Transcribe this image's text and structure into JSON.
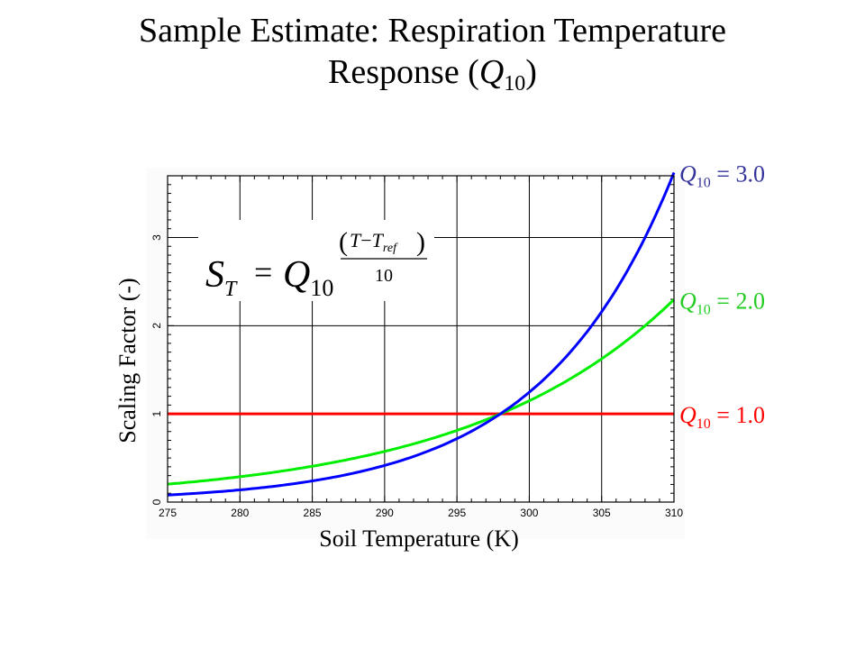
{
  "title": {
    "line1": "Sample Estimate: Respiration Temperature",
    "line2_prefix": "Response (",
    "line2_q": "Q",
    "line2_sub": "10",
    "line2_suffix": ")"
  },
  "formula": {
    "lhs": "S",
    "lhs_sub": "T",
    "eq": "=",
    "base": "Q",
    "base_sub": "10",
    "exp_num_t": "T",
    "exp_num_minus": "−",
    "exp_num_tref": "T",
    "exp_num_tref_sub": "ref",
    "exp_den": "10"
  },
  "chart_data": {
    "type": "line",
    "xlabel": "Soil Temperature (K)",
    "ylabel": "Scaling Factor (-)",
    "xlim": [
      275,
      310
    ],
    "ylim": [
      0,
      3.7
    ],
    "x_ticks": [
      275,
      280,
      285,
      290,
      295,
      300,
      305,
      310
    ],
    "y_ticks": [
      0,
      1,
      2,
      3
    ],
    "grid": true,
    "x": [
      275,
      277.5,
      280,
      282.5,
      285,
      287.5,
      290,
      292.5,
      295,
      297.5,
      298,
      300,
      302.5,
      305,
      307.5,
      310
    ],
    "series": [
      {
        "name": "Q10 = 1.0",
        "label_prefix": "Q",
        "label_sub": "10",
        "label_suffix": " = 1.0",
        "color": "#ff0000",
        "values": [
          1.0,
          1.0,
          1.0,
          1.0,
          1.0,
          1.0,
          1.0,
          1.0,
          1.0,
          1.0,
          1.0,
          1.0,
          1.0,
          1.0,
          1.0,
          1.0
        ]
      },
      {
        "name": "Q10 = 2.0",
        "label_prefix": "Q",
        "label_sub": "10",
        "label_suffix": " = 2.0",
        "color": "#00ee00",
        "label_color": "#22cc22",
        "values": [
          0.2,
          0.238,
          0.283,
          0.336,
          0.4,
          0.476,
          0.566,
          0.673,
          0.8,
          0.952,
          1.0,
          1.149,
          1.366,
          1.625,
          1.932,
          2.297
        ]
      },
      {
        "name": "Q10 = 3.0",
        "label_prefix": "Q",
        "label_sub": "10",
        "label_suffix": " = 3.0",
        "color": "#0000ff",
        "label_color": "#333399",
        "values": [
          0.075,
          0.099,
          0.13,
          0.171,
          0.224,
          0.295,
          0.388,
          0.51,
          0.669,
          0.88,
          1.0,
          1.246,
          1.638,
          2.158,
          2.837,
          3.737
        ]
      }
    ]
  }
}
